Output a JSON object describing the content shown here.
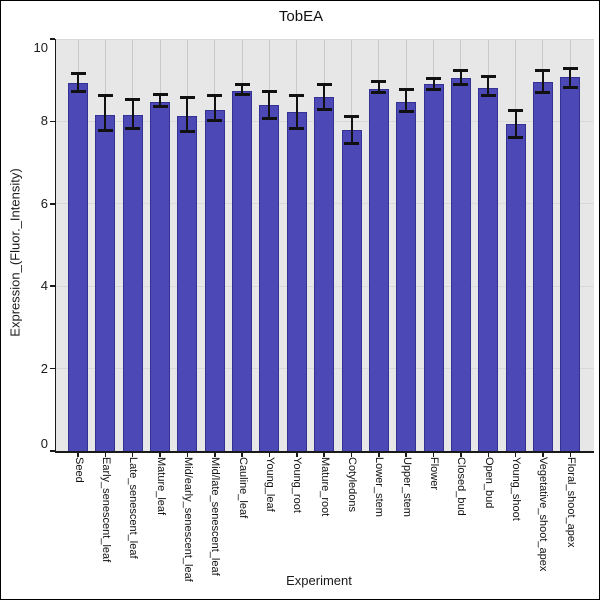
{
  "chart_data": {
    "type": "bar",
    "title": "TobEA",
    "xlabel": "Experiment",
    "ylabel": "Expression_(Fluor._Intensity)",
    "ylim": [
      0,
      10
    ],
    "yticks": [
      0,
      2,
      4,
      6,
      8,
      10
    ],
    "grid": true,
    "legend": "none",
    "categories": [
      "Seed",
      "Early_senescent_leaf",
      "Late_senescent_leaf",
      "Mature_leaf",
      "Mid/early_senescent_leaf",
      "Mid/late_senescent_leaf",
      "Cauline_leaf",
      "Young_leaf",
      "Young_root",
      "Mature_root",
      "Cotyledons",
      "Lower_stem",
      "Upper_stem",
      "Flower",
      "Closed_bud",
      "Open_bud",
      "Young_shoot",
      "Vegetative_shoot_apex",
      "Floral_shoot_apex"
    ],
    "values": [
      8.93,
      8.16,
      8.15,
      8.48,
      8.12,
      8.28,
      8.74,
      8.39,
      8.22,
      8.59,
      7.8,
      8.78,
      8.48,
      8.9,
      9.05,
      8.82,
      7.94,
      8.95,
      9.08
    ],
    "error_low": [
      8.72,
      7.77,
      7.82,
      8.36,
      7.76,
      8.02,
      8.65,
      8.08,
      7.82,
      8.28,
      7.47,
      8.69,
      8.23,
      8.77,
      8.89,
      8.63,
      7.61,
      8.69,
      8.82
    ],
    "error_high": [
      9.17,
      8.64,
      8.52,
      8.66,
      8.57,
      8.62,
      8.89,
      8.73,
      8.62,
      8.89,
      8.12,
      8.97,
      8.77,
      9.03,
      9.23,
      9.09,
      8.26,
      9.23,
      9.29
    ],
    "colors": {
      "bar_fill": "#4c49b6",
      "bar_border": "#333192",
      "plot_bg": "#e7e7e7",
      "grid_vertical": "#c9c9c9",
      "grid_horizontal": "#d9d9d9",
      "error_bar": "#111111",
      "axis": "#1a1a1a",
      "frame_border": "#000000"
    }
  }
}
